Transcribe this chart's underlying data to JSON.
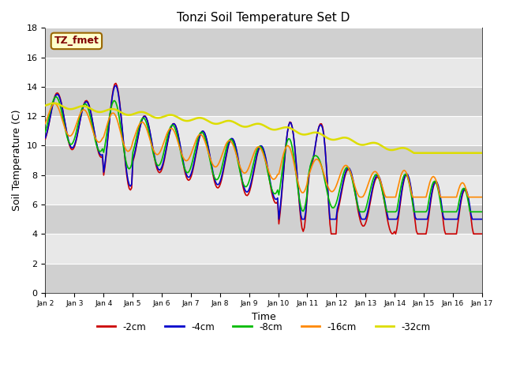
{
  "title": "Tonzi Soil Temperature Set D",
  "xlabel": "Time",
  "ylabel": "Soil Temperature (C)",
  "ylim": [
    0,
    18
  ],
  "label_box": "TZ_fmet",
  "plot_bg": "#e0e0e0",
  "series": {
    "-2cm": {
      "color": "#cc0000",
      "lw": 1.2
    },
    "-4cm": {
      "color": "#0000cc",
      "lw": 1.2
    },
    "-8cm": {
      "color": "#00bb00",
      "lw": 1.2
    },
    "-16cm": {
      "color": "#ff8800",
      "lw": 1.2
    },
    "-32cm": {
      "color": "#dddd00",
      "lw": 1.8
    }
  },
  "x_tick_labels": [
    "Jan 2",
    "Jan 3",
    "Jan 4",
    "Jan 5",
    "Jan 6",
    "Jan 7",
    "Jan 8",
    "Jan 9",
    "Jan 10",
    "Jan 11",
    "Jan 12",
    "Jan 13",
    "Jan 14",
    "Jan 15",
    "Jan 16",
    "Jan 17"
  ],
  "legend_labels": [
    "-2cm",
    "-4cm",
    "-8cm",
    "-16cm",
    "-32cm"
  ],
  "band_colors": [
    "#d0d0d0",
    "#e8e8e8"
  ],
  "band_yticks": [
    0,
    2,
    4,
    6,
    8,
    10,
    12,
    14,
    16,
    18
  ],
  "n_days": 15,
  "pts_per_day": 24
}
